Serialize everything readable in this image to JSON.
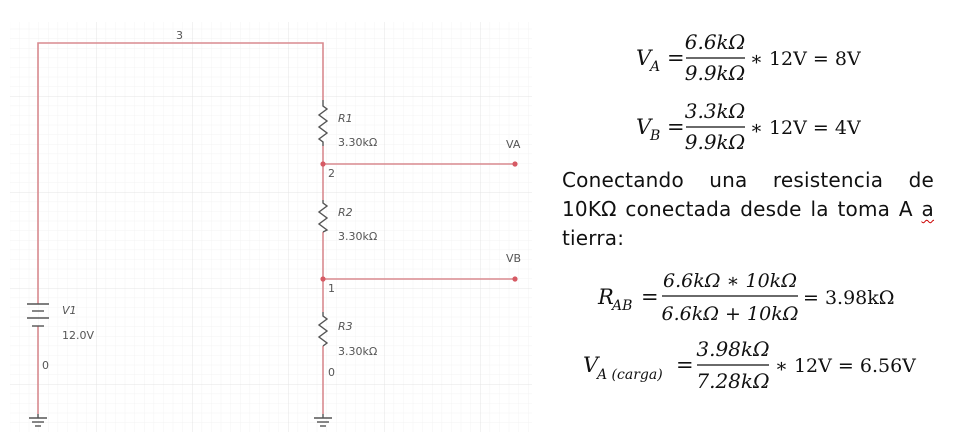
{
  "circuit": {
    "nodes": {
      "n3": "3",
      "n2": "2",
      "n1": "1",
      "n0_left": "0",
      "n0_right": "0"
    },
    "components": {
      "r1": {
        "name": "R1",
        "value": "3.30kΩ"
      },
      "r2": {
        "name": "R2",
        "value": "3.30kΩ"
      },
      "r3": {
        "name": "R3",
        "value": "3.30kΩ"
      },
      "v1": {
        "name": "V1",
        "value": "12.0V"
      }
    },
    "probes": {
      "va": "VA",
      "vb": "VB"
    },
    "colors": {
      "wire": "#d98a8f",
      "dot": "#d65a64",
      "grid": "#ececec",
      "component": "#666666"
    }
  },
  "equations": {
    "va": {
      "lhs": "V",
      "sub": "A",
      "num": "6.6kΩ",
      "den": "9.9kΩ",
      "rhs": "∗ 12V = 8V"
    },
    "vb": {
      "lhs": "V",
      "sub": "B",
      "num": "3.3kΩ",
      "den": "9.9kΩ",
      "rhs": "∗ 12V = 4V"
    },
    "rab": {
      "lhs": "R",
      "sub": "AB",
      "num": "6.6kΩ ∗ 10kΩ",
      "den": "6.6kΩ + 10kΩ",
      "rhs": "= 3.98kΩ"
    },
    "vcarga": {
      "lhs": "V",
      "sub": "A (carga)",
      "num": "3.98kΩ",
      "den": "7.28kΩ",
      "rhs": "∗ 12V = 6.56V"
    }
  },
  "text": {
    "paragraph_main": "Conectando una resistencia de 10KΩ conectada desde la toma A",
    "paragraph_a": "a",
    "paragraph_end": " tierra:"
  }
}
